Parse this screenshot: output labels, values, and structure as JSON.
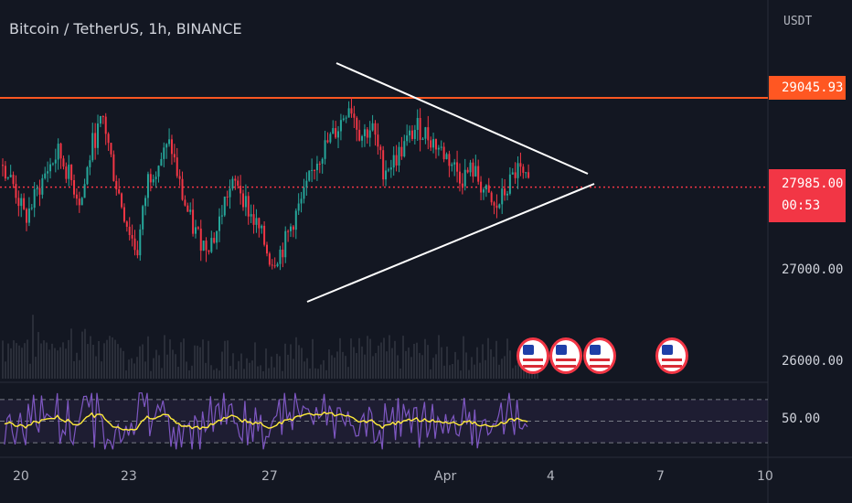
{
  "header": {
    "symbol": "Bitcoin / TetherUS, 1h, BINANCE",
    "unit": "USDT"
  },
  "colors": {
    "background": "#131722",
    "up": "#26a69a",
    "down": "#f23645",
    "resistance": "#ff5722",
    "rsi_line": "#7e57c2",
    "rsi_ma": "#ffeb3b",
    "trendline": "#ffffff"
  },
  "price_axis": {
    "labels": [
      "27000.00",
      "26000.00"
    ],
    "resistance_tag": "29045.93",
    "current_price_tag": "27985.00",
    "countdown_tag": "00:53",
    "rsi_label": "50.00"
  },
  "time_axis": {
    "labels": [
      "20",
      "23",
      "27",
      "Apr",
      "4",
      "7",
      "10"
    ]
  },
  "events": {
    "icons": [
      "us-flag-icon",
      "us-flag-icon",
      "us-flag-icon",
      "us-flag-icon"
    ]
  },
  "chart_data": {
    "type": "candlestick",
    "x_range": [
      "Mar 19",
      "Apr 10"
    ],
    "ylim": [
      25700,
      30100
    ],
    "resistance_level": 29045.93,
    "current_price": 27985.0,
    "close_series": [
      28250,
      28000,
      27600,
      27900,
      28200,
      28400,
      28100,
      27800,
      28500,
      28800,
      28100,
      27600,
      27200,
      28100,
      28300,
      28500,
      27900,
      27500,
      27300,
      27400,
      27900,
      28050,
      27700,
      27450,
      27100,
      27250,
      27600,
      27900,
      28300,
      28500,
      28700,
      29000,
      28600,
      28700,
      28200,
      28300,
      28500,
      28700,
      28600,
      28450,
      28300,
      28100,
      28200,
      27950,
      27700,
      27950,
      28200,
      27985
    ],
    "rsi": {
      "levels": [
        70,
        50,
        30
      ],
      "ylim": [
        20,
        80
      ]
    }
  }
}
